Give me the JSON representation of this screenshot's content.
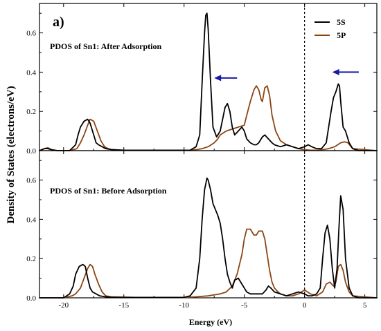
{
  "panel_letter": "a)",
  "legend": {
    "placement": "top-right",
    "entries": [
      {
        "label": "5S",
        "color": "#000000"
      },
      {
        "label": "5P",
        "color": "#8B4513"
      }
    ]
  },
  "chart_data": [
    {
      "type": "line",
      "title": "PDOS of Sn1: After Adsorption",
      "xlabel": "Energy (eV)",
      "ylabel": "Density of States (electrons/eV)",
      "xlim": [
        -22,
        6
      ],
      "ylim": [
        0,
        0.75
      ],
      "xticks": [
        -20,
        -15,
        -10,
        -5,
        0,
        5
      ],
      "yticks": [
        0.0,
        0.2,
        0.4,
        0.6
      ],
      "fermi_level": 0,
      "annotations": [
        {
          "type": "arrow",
          "direction": "left",
          "from_x": -5.6,
          "to_x": -7.5,
          "y": 0.37,
          "color": "#1a1aa6"
        },
        {
          "type": "arrow",
          "direction": "left",
          "from_x": 4.5,
          "to_x": 2.3,
          "y": 0.4,
          "color": "#1a1aa6"
        }
      ],
      "series": [
        {
          "name": "5S",
          "color": "#000000",
          "x": [
            -22,
            -21.6,
            -21.3,
            -21.0,
            -20.5,
            -19.5,
            -19.0,
            -18.8,
            -18.6,
            -18.3,
            -18.0,
            -17.8,
            -17.5,
            -17.3,
            -17.1,
            -16.8,
            -16.5,
            -16.0,
            -15.0,
            -13.0,
            -11.0,
            -9.5,
            -9.0,
            -8.7,
            -8.5,
            -8.3,
            -8.2,
            -8.1,
            -8.0,
            -7.8,
            -7.6,
            -7.3,
            -7.0,
            -6.8,
            -6.6,
            -6.4,
            -6.2,
            -6.0,
            -5.8,
            -5.5,
            -5.2,
            -5.0,
            -4.8,
            -4.5,
            -4.2,
            -4.0,
            -3.8,
            -3.5,
            -3.3,
            -3.0,
            -2.7,
            -2.5,
            -2.0,
            -1.5,
            -1.0,
            -0.5,
            0.0,
            0.3,
            0.6,
            1.0,
            1.4,
            1.8,
            2.0,
            2.2,
            2.4,
            2.6,
            2.8,
            2.9,
            3.0,
            3.2,
            3.4,
            3.7,
            4.0,
            4.5,
            6.0
          ],
          "y": [
            0.0,
            0.01,
            0.01,
            0.005,
            0.0,
            0.0,
            0.03,
            0.08,
            0.12,
            0.15,
            0.16,
            0.14,
            0.08,
            0.04,
            0.03,
            0.02,
            0.01,
            0.005,
            0.002,
            0.002,
            0.002,
            0.002,
            0.02,
            0.08,
            0.35,
            0.6,
            0.69,
            0.7,
            0.62,
            0.35,
            0.12,
            0.07,
            0.1,
            0.16,
            0.22,
            0.24,
            0.2,
            0.12,
            0.08,
            0.1,
            0.12,
            0.1,
            0.06,
            0.04,
            0.03,
            0.03,
            0.04,
            0.07,
            0.08,
            0.06,
            0.04,
            0.03,
            0.02,
            0.03,
            0.02,
            0.01,
            0.02,
            0.03,
            0.02,
            0.01,
            0.01,
            0.04,
            0.12,
            0.2,
            0.27,
            0.3,
            0.34,
            0.33,
            0.25,
            0.12,
            0.1,
            0.04,
            0.01,
            0.0,
            0.0
          ]
        },
        {
          "name": "5P",
          "color": "#8B4513",
          "x": [
            -22,
            -21.6,
            -21.3,
            -21.0,
            -20.5,
            -19.5,
            -18.9,
            -18.6,
            -18.3,
            -18.0,
            -17.8,
            -17.5,
            -17.2,
            -16.9,
            -16.6,
            -16.3,
            -16.0,
            -15.0,
            -13.0,
            -11.0,
            -9.5,
            -9.0,
            -8.5,
            -8.0,
            -7.5,
            -7.2,
            -7.0,
            -6.5,
            -6.0,
            -5.5,
            -5.0,
            -4.8,
            -4.5,
            -4.2,
            -4.0,
            -3.8,
            -3.6,
            -3.5,
            -3.3,
            -3.1,
            -2.9,
            -2.7,
            -2.4,
            -2.0,
            -1.5,
            -1.0,
            -0.5,
            0.0,
            0.5,
            1.0,
            1.5,
            2.0,
            2.5,
            3.0,
            3.3,
            3.6,
            4.0,
            6.0
          ],
          "y": [
            0.0,
            0.01,
            0.015,
            0.005,
            0.0,
            0.0,
            0.01,
            0.04,
            0.08,
            0.13,
            0.16,
            0.15,
            0.1,
            0.05,
            0.02,
            0.01,
            0.005,
            0.002,
            0.002,
            0.002,
            0.002,
            0.005,
            0.01,
            0.02,
            0.04,
            0.06,
            0.08,
            0.1,
            0.11,
            0.12,
            0.13,
            0.18,
            0.25,
            0.31,
            0.33,
            0.31,
            0.26,
            0.25,
            0.32,
            0.33,
            0.28,
            0.18,
            0.1,
            0.05,
            0.03,
            0.02,
            0.01,
            0.005,
            0.002,
            0.002,
            0.005,
            0.01,
            0.02,
            0.04,
            0.045,
            0.04,
            0.01,
            0.0
          ]
        }
      ]
    },
    {
      "type": "line",
      "title": "PDOS of Sn1: Before Adsorption",
      "xlabel": "Energy (eV)",
      "ylabel": "Density of States (electrons/eV)",
      "xlim": [
        -22,
        6
      ],
      "ylim": [
        0,
        0.75
      ],
      "xticks": [
        -20,
        -15,
        -10,
        -5,
        0,
        5
      ],
      "yticks": [
        0.0,
        0.2,
        0.4,
        0.6
      ],
      "fermi_level": 0,
      "series": [
        {
          "name": "5S",
          "color": "#000000",
          "x": [
            -22,
            -20.0,
            -19.5,
            -19.2,
            -19.0,
            -18.7,
            -18.4,
            -18.2,
            -18.0,
            -17.8,
            -17.6,
            -17.3,
            -17.0,
            -16.5,
            -16.0,
            -14.0,
            -12.0,
            -10.0,
            -9.5,
            -9.0,
            -8.7,
            -8.5,
            -8.3,
            -8.1,
            -8.0,
            -7.8,
            -7.6,
            -7.4,
            -7.2,
            -7.0,
            -6.8,
            -6.6,
            -6.4,
            -6.2,
            -6.0,
            -5.8,
            -5.5,
            -5.2,
            -5.0,
            -4.8,
            -4.5,
            -4.0,
            -3.5,
            -3.2,
            -3.0,
            -2.8,
            -2.5,
            -2.0,
            -1.5,
            -1.0,
            -0.5,
            0.0,
            0.3,
            0.6,
            1.0,
            1.3,
            1.5,
            1.7,
            1.9,
            2.1,
            2.3,
            2.5,
            2.7,
            2.85,
            3.0,
            3.2,
            3.4,
            3.7,
            4.0,
            4.5,
            6.0
          ],
          "y": [
            0.0,
            0.0,
            0.02,
            0.06,
            0.12,
            0.16,
            0.17,
            0.16,
            0.1,
            0.05,
            0.03,
            0.02,
            0.01,
            0.005,
            0.002,
            0.002,
            0.002,
            0.002,
            0.01,
            0.05,
            0.2,
            0.4,
            0.55,
            0.61,
            0.6,
            0.55,
            0.48,
            0.45,
            0.42,
            0.38,
            0.3,
            0.2,
            0.12,
            0.08,
            0.05,
            0.09,
            0.1,
            0.07,
            0.05,
            0.03,
            0.02,
            0.02,
            0.02,
            0.04,
            0.06,
            0.05,
            0.03,
            0.02,
            0.01,
            0.02,
            0.03,
            0.02,
            0.01,
            0.01,
            0.02,
            0.05,
            0.2,
            0.33,
            0.37,
            0.3,
            0.15,
            0.05,
            0.15,
            0.35,
            0.52,
            0.45,
            0.2,
            0.05,
            0.01,
            0.0,
            0.0
          ]
        },
        {
          "name": "5P",
          "color": "#8B4513",
          "x": [
            -22,
            -20.0,
            -19.3,
            -19.0,
            -18.6,
            -18.3,
            -18.0,
            -17.8,
            -17.6,
            -17.4,
            -17.1,
            -16.8,
            -16.5,
            -16.0,
            -14.0,
            -12.0,
            -10.0,
            -9.0,
            -8.0,
            -7.0,
            -6.5,
            -6.0,
            -5.6,
            -5.2,
            -5.0,
            -4.8,
            -4.5,
            -4.2,
            -4.0,
            -3.8,
            -3.5,
            -3.3,
            -3.1,
            -2.9,
            -2.7,
            -2.5,
            -2.2,
            -2.0,
            -1.5,
            -1.0,
            -0.5,
            0.0,
            0.5,
            1.0,
            1.5,
            1.8,
            2.1,
            2.4,
            2.6,
            2.8,
            3.0,
            3.2,
            3.4,
            3.7,
            4.0,
            6.0
          ],
          "y": [
            0.0,
            0.0,
            0.01,
            0.02,
            0.05,
            0.1,
            0.15,
            0.17,
            0.16,
            0.12,
            0.07,
            0.03,
            0.01,
            0.005,
            0.002,
            0.002,
            0.002,
            0.005,
            0.01,
            0.02,
            0.03,
            0.06,
            0.12,
            0.22,
            0.3,
            0.35,
            0.35,
            0.32,
            0.32,
            0.34,
            0.34,
            0.3,
            0.22,
            0.14,
            0.08,
            0.05,
            0.03,
            0.02,
            0.01,
            0.01,
            0.02,
            0.04,
            0.02,
            0.01,
            0.03,
            0.07,
            0.08,
            0.06,
            0.08,
            0.16,
            0.17,
            0.14,
            0.08,
            0.03,
            0.01,
            0.0
          ]
        }
      ]
    }
  ]
}
